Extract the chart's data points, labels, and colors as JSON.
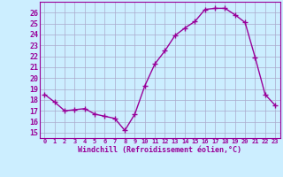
{
  "x": [
    0,
    1,
    2,
    3,
    4,
    5,
    6,
    7,
    8,
    9,
    10,
    11,
    12,
    13,
    14,
    15,
    16,
    17,
    18,
    19,
    20,
    21,
    22,
    23
  ],
  "y": [
    18.5,
    17.8,
    17.0,
    17.1,
    17.2,
    16.7,
    16.5,
    16.3,
    15.2,
    16.7,
    19.3,
    21.3,
    22.5,
    23.9,
    24.6,
    25.2,
    26.3,
    26.4,
    26.4,
    25.8,
    25.1,
    21.9,
    18.5,
    17.5
  ],
  "line_color": "#990099",
  "marker": "+",
  "marker_size": 4,
  "marker_lw": 1.0,
  "bg_color": "#cceeff",
  "grid_color": "#aaaacc",
  "xlabel": "Windchill (Refroidissement éolien,°C)",
  "xlabel_color": "#990099",
  "ytick_labels": [
    "15",
    "16",
    "17",
    "18",
    "19",
    "20",
    "21",
    "22",
    "23",
    "24",
    "25",
    "26"
  ],
  "ytick_values": [
    15,
    16,
    17,
    18,
    19,
    20,
    21,
    22,
    23,
    24,
    25,
    26
  ],
  "ylim": [
    14.5,
    27.0
  ],
  "xlim": [
    -0.5,
    23.5
  ],
  "tick_color": "#990099",
  "spine_color": "#990099",
  "line_width": 1.0
}
